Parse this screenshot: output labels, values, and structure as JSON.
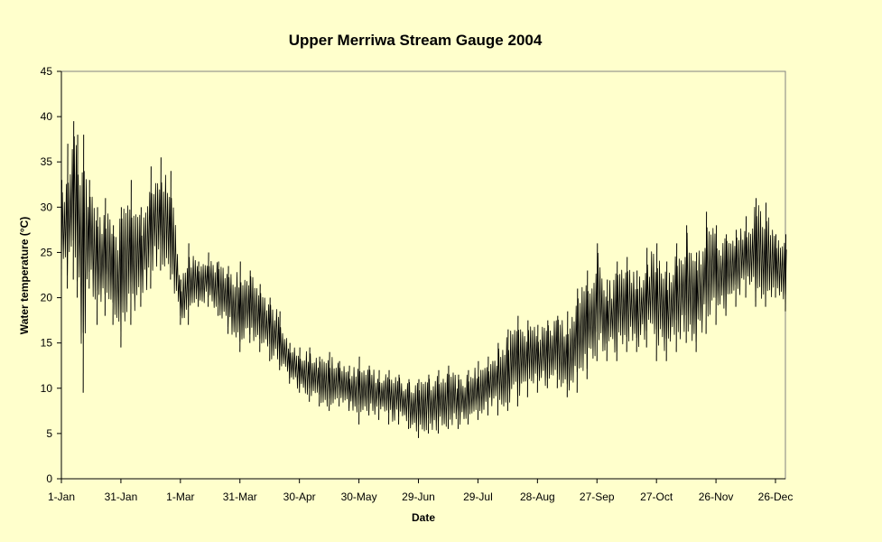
{
  "chart_data": {
    "type": "line",
    "title": "Upper Merriwa Stream Gauge 2004",
    "xlabel": "Date",
    "ylabel": "Water temperature (°C)",
    "ylim": [
      0,
      45
    ],
    "yticks": [
      0,
      5,
      10,
      15,
      20,
      25,
      30,
      35,
      40,
      45
    ],
    "xlim": [
      "2004-01-01",
      "2004-12-31"
    ],
    "xticks": [
      {
        "date": "2004-01-01",
        "label": "1-Jan"
      },
      {
        "date": "2004-01-31",
        "label": "31-Jan"
      },
      {
        "date": "2004-03-01",
        "label": "1-Mar"
      },
      {
        "date": "2004-03-31",
        "label": "31-Mar"
      },
      {
        "date": "2004-04-30",
        "label": "30-Apr"
      },
      {
        "date": "2004-05-30",
        "label": "30-May"
      },
      {
        "date": "2004-06-29",
        "label": "29-Jun"
      },
      {
        "date": "2004-07-29",
        "label": "29-Jul"
      },
      {
        "date": "2004-08-28",
        "label": "28-Aug"
      },
      {
        "date": "2004-09-27",
        "label": "27-Sep"
      },
      {
        "date": "2004-10-27",
        "label": "27-Oct"
      },
      {
        "date": "2004-11-26",
        "label": "26-Nov"
      },
      {
        "date": "2004-12-26",
        "label": "26-Dec"
      }
    ],
    "grid": false,
    "legend": "none",
    "series_color": "#000000",
    "series": [
      {
        "description": "Daily minimum / maximum water temperature envelope (°C)",
        "x": [
          "2004-01-01",
          "2004-01-04",
          "2004-01-07",
          "2004-01-09",
          "2004-01-12",
          "2004-01-15",
          "2004-01-19",
          "2004-01-23",
          "2004-01-27",
          "2004-01-31",
          "2004-02-05",
          "2004-02-10",
          "2004-02-15",
          "2004-02-20",
          "2004-02-25",
          "2004-03-01",
          "2004-03-05",
          "2004-03-10",
          "2004-03-15",
          "2004-03-20",
          "2004-03-25",
          "2004-03-31",
          "2004-04-05",
          "2004-04-10",
          "2004-04-15",
          "2004-04-20",
          "2004-04-25",
          "2004-04-30",
          "2004-05-05",
          "2004-05-10",
          "2004-05-15",
          "2004-05-20",
          "2004-05-25",
          "2004-05-30",
          "2004-06-04",
          "2004-06-09",
          "2004-06-14",
          "2004-06-19",
          "2004-06-24",
          "2004-06-29",
          "2004-07-04",
          "2004-07-09",
          "2004-07-14",
          "2004-07-19",
          "2004-07-24",
          "2004-07-29",
          "2004-08-03",
          "2004-08-08",
          "2004-08-13",
          "2004-08-18",
          "2004-08-23",
          "2004-08-28",
          "2004-09-02",
          "2004-09-07",
          "2004-09-12",
          "2004-09-17",
          "2004-09-22",
          "2004-09-27",
          "2004-10-02",
          "2004-10-07",
          "2004-10-12",
          "2004-10-17",
          "2004-10-22",
          "2004-10-27",
          "2004-11-01",
          "2004-11-06",
          "2004-11-11",
          "2004-11-16",
          "2004-11-21",
          "2004-11-26",
          "2004-12-01",
          "2004-12-06",
          "2004-12-11",
          "2004-12-16",
          "2004-12-21",
          "2004-12-26",
          "2004-12-31"
        ],
        "min": [
          22,
          21,
          22,
          20,
          9.5,
          21,
          17,
          18,
          17,
          14.5,
          17,
          19,
          21,
          23,
          22,
          17,
          17,
          19,
          19,
          18,
          16,
          14,
          15,
          14,
          13,
          12,
          10.5,
          9.5,
          8.5,
          8,
          7.5,
          8,
          7.5,
          6,
          7,
          6.5,
          6,
          6,
          5.5,
          4.5,
          5,
          5,
          5.5,
          5.5,
          6,
          6.5,
          7,
          7,
          7.5,
          8,
          9,
          9.5,
          10,
          10,
          9,
          9.5,
          11,
          13,
          13,
          13,
          14,
          14,
          14.5,
          13,
          13,
          14,
          15,
          14,
          16,
          17,
          18,
          19,
          20,
          19,
          19,
          20,
          18.5
        ],
        "max": [
          33,
          37,
          39.5,
          38,
          38,
          33,
          30,
          31,
          28,
          30,
          33,
          30,
          34.5,
          35.5,
          34,
          22,
          26,
          24,
          25,
          24,
          23.5,
          24,
          23,
          21.5,
          20,
          18.5,
          15,
          14.5,
          14.5,
          13.5,
          14,
          13,
          12.5,
          13.5,
          12.5,
          12,
          12,
          11.5,
          11,
          11,
          11.5,
          12,
          12.5,
          11.5,
          12,
          13,
          13.5,
          15,
          16.5,
          18,
          17.5,
          17,
          17.5,
          18,
          18.5,
          21,
          23,
          26,
          22,
          24,
          24.5,
          23,
          25.5,
          26,
          24,
          26,
          28,
          25,
          29.5,
          28,
          27,
          27.5,
          29,
          31,
          30.5,
          27,
          27
        ]
      }
    ]
  }
}
